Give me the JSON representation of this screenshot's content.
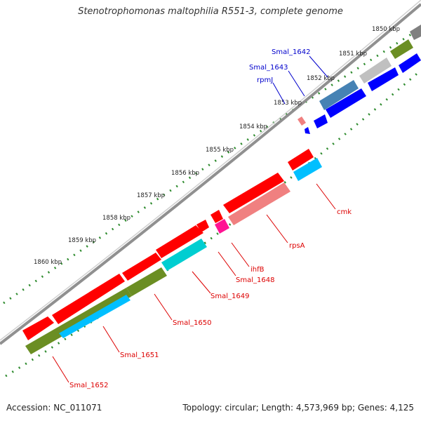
{
  "title": "Stenotrophomonas maltophilia R551-3, complete genome",
  "footer": {
    "accession": "Accession: NC_011071",
    "summary": "Topology: circular; Length: 4,573,969 bp; Genes: 4,125"
  },
  "kbp_labels": [
    "1850 kbp",
    "1851 kbp",
    "1852 kbp",
    "1853 kbp",
    "1854 kbp",
    "1855 kbp",
    "1856 kbp",
    "1857 kbp",
    "1858 kbp",
    "1859 kbp",
    "1860 kbp"
  ],
  "gene_labels": [
    "Smal_1642",
    "Smal_1643",
    "rpmJ",
    "cmk",
    "rpsA",
    "ihfB",
    "Smal_1648",
    "Smal_1649",
    "Smal_1650",
    "Smal_1651",
    "Smal_1652"
  ],
  "colors": {
    "backbone": "#808080",
    "tick": "#2e8b2e",
    "red_gene": "#ff0000",
    "salmon_gene": "#f08080",
    "blue_gene": "#0000ff",
    "steelblue_gene": "#4682b4",
    "cyan_gene": "#00bfff",
    "olive_gene": "#6b8e23",
    "magenta_gene": "#ff1493",
    "grey_gene": "#c0c0c0",
    "label_red": "#dd0000",
    "label_blue": "#0000cc"
  }
}
